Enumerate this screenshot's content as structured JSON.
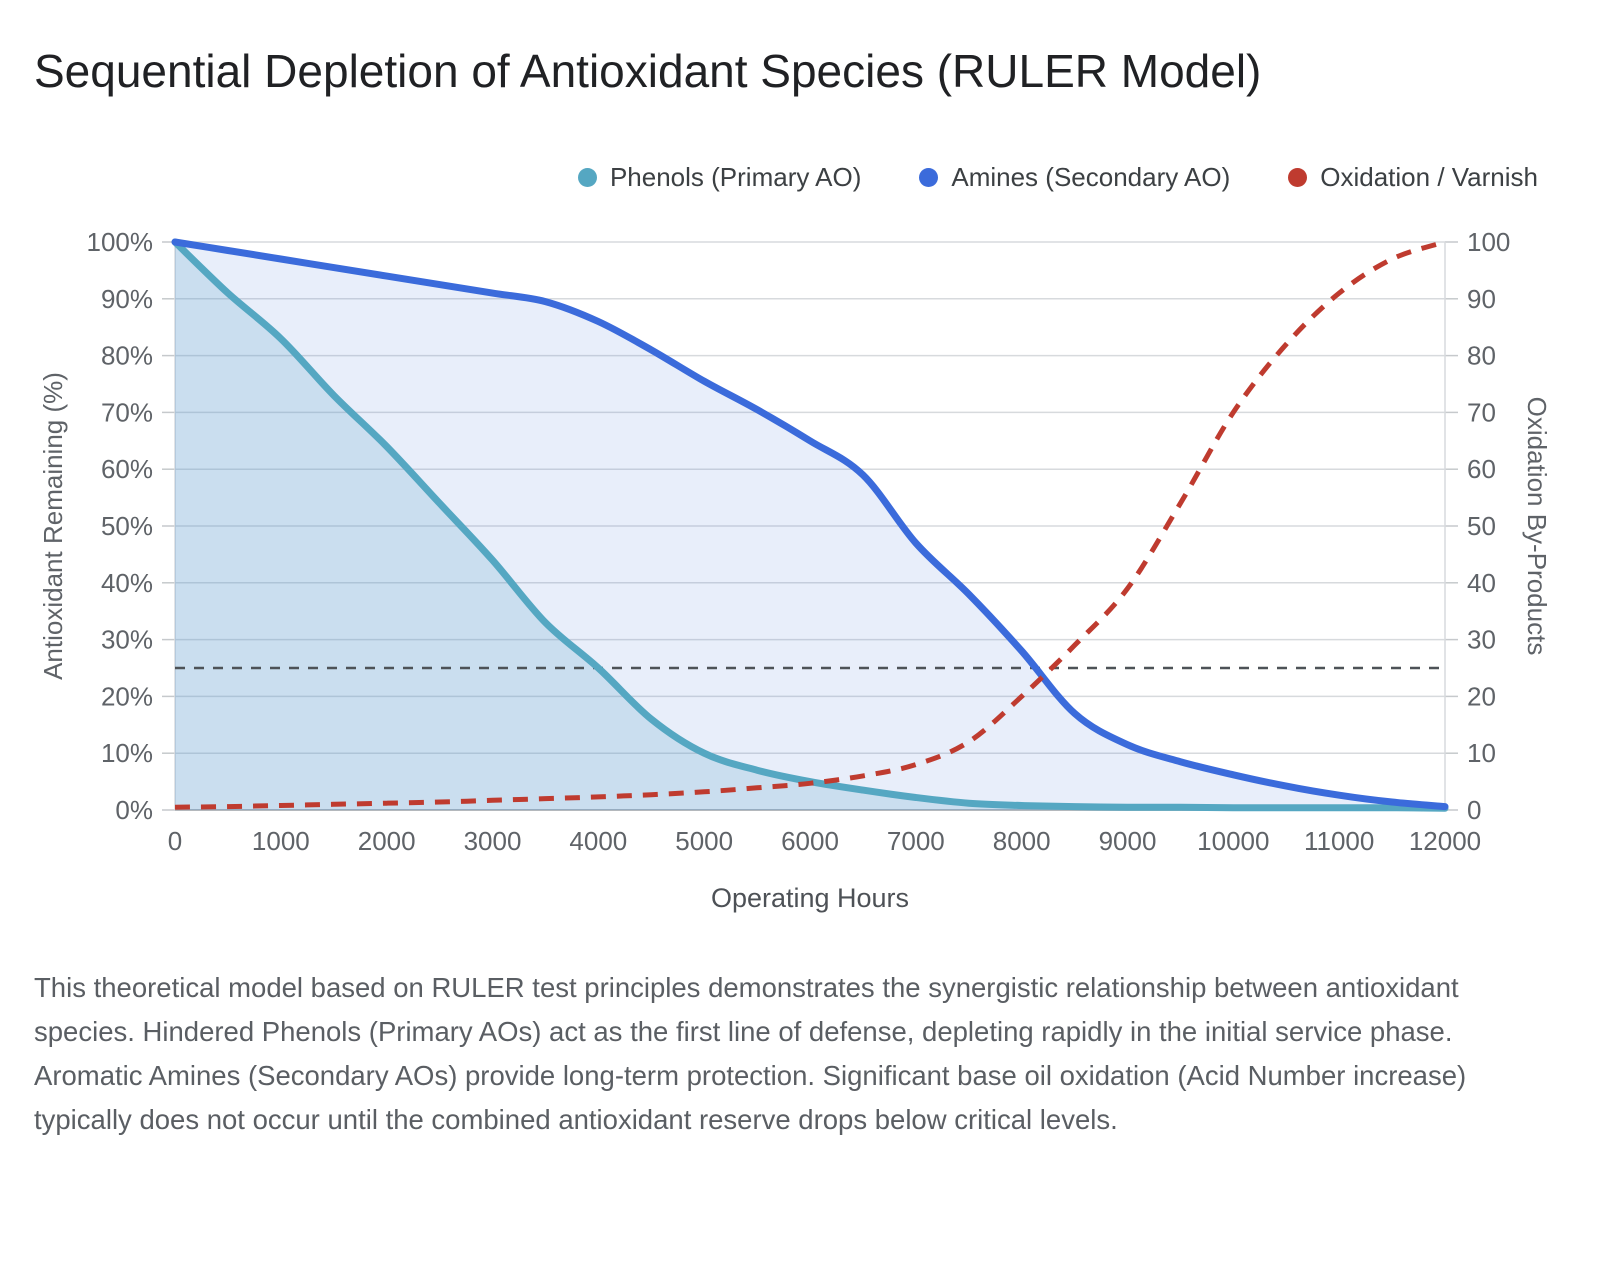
{
  "page": {
    "title": "Sequential Depletion of Antioxidant Species (RULER Model)",
    "footer": "This theoretical model based on RULER test principles demonstrates the synergistic relationship between antioxidant species. Hindered Phenols (Primary AOs) act as the first line of defense, depleting rapidly in the initial service phase. Aromatic Amines (Secondary AOs) provide long-term protection. Significant base oil oxidation (Acid Number increase) typically does not occur until the combined antioxidant reserve drops below critical levels."
  },
  "colors": {
    "phenols": "#55A7C2",
    "amines": "#3B6BDB",
    "oxidation": "#BF3B2F",
    "threshold": "#4d5257",
    "grid": "#d7dadd",
    "baseline": "#b4b8bc",
    "tick": "#c6c9cc",
    "axis_text": "#5f6368",
    "title_text": "#202124"
  },
  "legend": {
    "items": [
      {
        "label": "Phenols (Primary AO)",
        "color": "#55A7C2"
      },
      {
        "label": "Amines (Secondary AO)",
        "color": "#3B6BDB"
      },
      {
        "label": "Oxidation / Varnish",
        "color": "#BF3B2F"
      }
    ]
  },
  "chart_data": {
    "type": "line",
    "title": "Sequential Depletion of Antioxidant Species (RULER Model)",
    "xlabel": "Operating Hours",
    "ylabel_left": "Antioxidant Remaining (%)",
    "ylabel_right": "Oxidation By-Products",
    "xlim": [
      0,
      12000
    ],
    "ylim_left": [
      0,
      100
    ],
    "ylim_right": [
      0,
      100
    ],
    "xticks": [
      0,
      1000,
      2000,
      3000,
      4000,
      5000,
      6000,
      7000,
      8000,
      9000,
      10000,
      11000,
      12000
    ],
    "yticks": [
      0,
      10,
      20,
      30,
      40,
      50,
      60,
      70,
      80,
      90,
      100
    ],
    "grid": true,
    "legend_position": "top",
    "threshold_line": {
      "value": 25,
      "axis": "left",
      "style": "dashed",
      "color": "#4d5257"
    },
    "x": [
      0,
      500,
      1000,
      1500,
      2000,
      2500,
      3000,
      3500,
      4000,
      4500,
      5000,
      5500,
      6000,
      6500,
      7000,
      7500,
      8000,
      8500,
      9000,
      9500,
      10000,
      10500,
      11000,
      11500,
      12000
    ],
    "series": [
      {
        "name": "Phenols (Primary AO)",
        "axis": "left",
        "color": "#55A7C2",
        "width": 7,
        "dash": "",
        "fill": true,
        "fill_rgba": "rgba(85,167,194,0.20)",
        "values": [
          100,
          91,
          83,
          73,
          64,
          54,
          44,
          33,
          25,
          16,
          10,
          7,
          5,
          3.5,
          2.2,
          1.2,
          0.8,
          0.6,
          0.5,
          0.5,
          0.4,
          0.4,
          0.4,
          0.4,
          0.3
        ]
      },
      {
        "name": "Amines (Secondary AO)",
        "axis": "left",
        "color": "#3B6BDB",
        "width": 7,
        "dash": "",
        "fill": true,
        "fill_rgba": "rgba(75,120,220,0.13)",
        "values": [
          100,
          98.5,
          97,
          95.5,
          94,
          92.5,
          91,
          89.5,
          86,
          81,
          75.5,
          70.5,
          65,
          59,
          47,
          38,
          28,
          17,
          11.5,
          8.5,
          6.2,
          4.2,
          2.6,
          1.4,
          0.6
        ]
      },
      {
        "name": "Oxidation / Varnish",
        "axis": "right",
        "color": "#BF3B2F",
        "width": 5,
        "dash": "15 11",
        "fill": false,
        "fill_rgba": "",
        "values": [
          0.5,
          0.6,
          0.8,
          1,
          1.2,
          1.4,
          1.7,
          2,
          2.3,
          2.7,
          3.2,
          3.9,
          4.7,
          6,
          8,
          12,
          20,
          29,
          39,
          54,
          70,
          82,
          91,
          97,
          100
        ]
      }
    ]
  }
}
